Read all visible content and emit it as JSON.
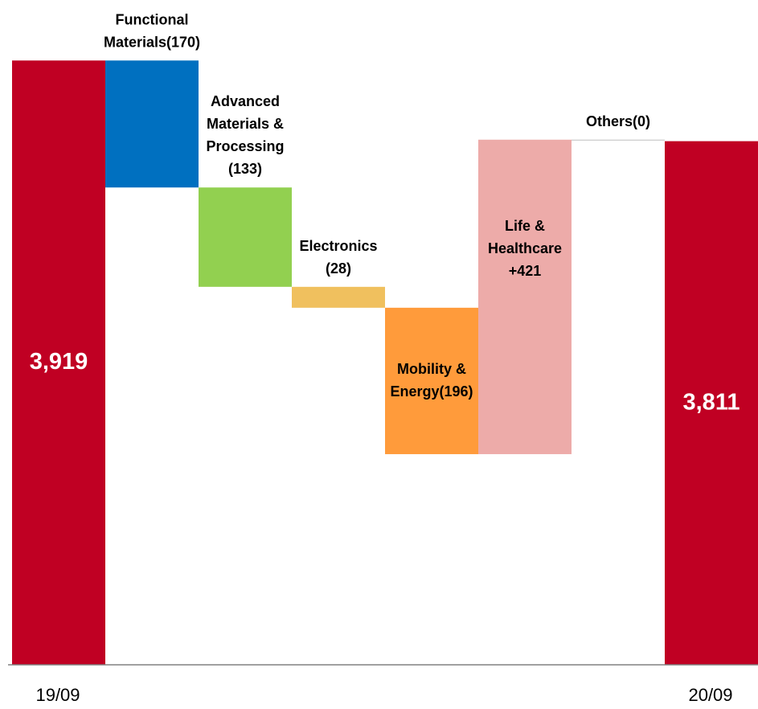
{
  "chart_data": {
    "type": "waterfall",
    "categories": [
      "19/09",
      null,
      null,
      null,
      null,
      null,
      null,
      "20/09"
    ],
    "values": [
      3919,
      -170,
      -133,
      -28,
      -196,
      421,
      0,
      3811
    ],
    "measure": [
      "absolute",
      "relative",
      "relative",
      "relative",
      "relative",
      "relative",
      "relative",
      "absolute"
    ],
    "value_labels": [
      [
        "3,919"
      ],
      [
        "Functional",
        "Materials(170)"
      ],
      [
        "Advanced",
        "Materials &",
        "Processing",
        "(133)"
      ],
      [
        "Electronics",
        "(28)"
      ],
      [
        "Mobility &",
        "Energy(196)"
      ],
      [
        "Life &",
        "Healthcare",
        "+421"
      ],
      [
        "Others(0)"
      ],
      [
        "3,811"
      ]
    ],
    "colors": [
      "#c00023",
      "#0070c0",
      "#92d050",
      "#f0c05e",
      "#ff9b3b",
      "#edaba9",
      "#bfbfbf",
      "#c00023"
    ],
    "ylim": [
      3110,
      4000
    ]
  }
}
